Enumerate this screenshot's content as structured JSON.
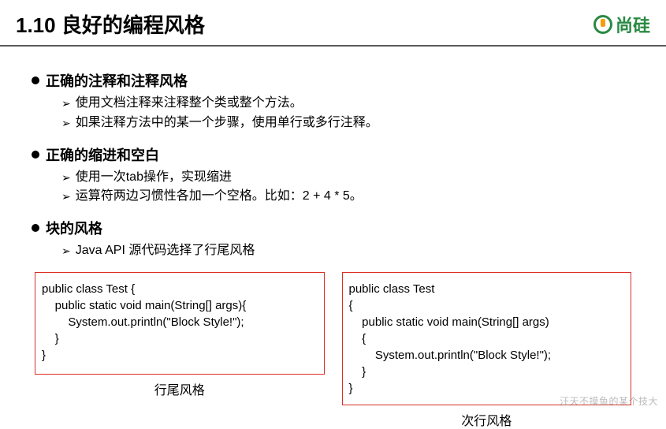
{
  "header": {
    "title": "1.10 良好的编程风格",
    "logo_text": "尚硅"
  },
  "sections": [
    {
      "title": "正确的注释和注释风格",
      "items": [
        "使用文档注释来注释整个类或整个方法。",
        "如果注释方法中的某一个步骤，使用单行或多行注释。"
      ]
    },
    {
      "title": "正确的缩进和空白",
      "items": [
        "使用一次tab操作，实现缩进",
        "运算符两边习惯性各加一个空格。比如：2 + 4 * 5。"
      ]
    },
    {
      "title": "块的风格",
      "items": [
        "Java API 源代码选择了行尾风格"
      ]
    }
  ],
  "code": {
    "left": {
      "text": "public class Test {\n    public static void main(String[] args){\n        System.out.println(\"Block Style!\");\n    }\n}",
      "caption": "行尾风格"
    },
    "right": {
      "text": "public class Test\n{\n    public static void main(String[] args)\n    {\n        System.out.println(\"Block Style!\");\n    }\n}",
      "caption": "次行风格"
    },
    "border_color": "#d93025"
  },
  "watermark": "汪天不摸鱼的某个技大"
}
